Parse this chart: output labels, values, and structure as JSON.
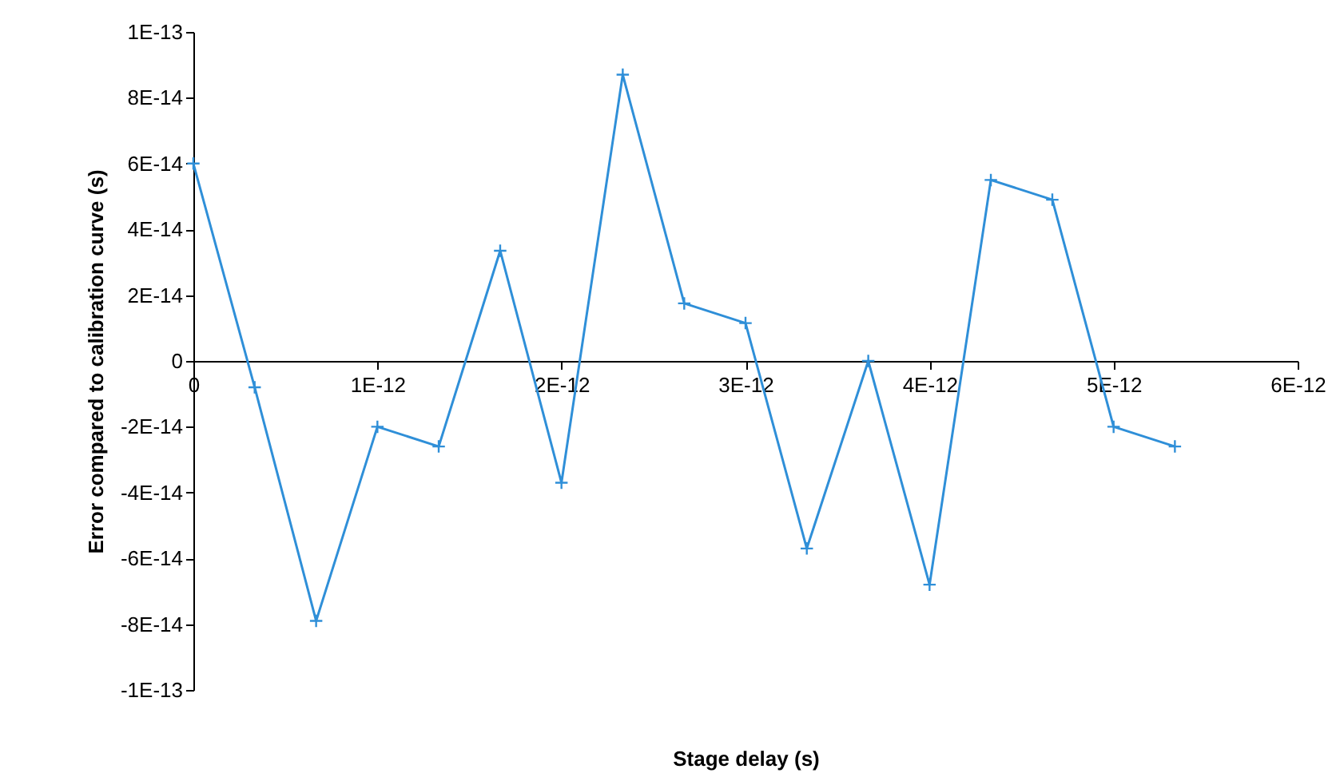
{
  "chart_data": {
    "type": "line",
    "xlabel": "Stage delay (s)",
    "ylabel": "Error compared to calibration curve (s)",
    "x": [
      0,
      3.33e-13,
      6.67e-13,
      1e-12,
      1.333e-12,
      1.667e-12,
      2e-12,
      2.333e-12,
      2.667e-12,
      3e-12,
      3.333e-12,
      3.667e-12,
      4e-12,
      4.333e-12,
      4.667e-12,
      5e-12,
      5.333e-12
    ],
    "series": [
      {
        "color": "#2f8fd8",
        "values": [
          6e-14,
          -8e-15,
          -7.9e-14,
          -2e-14,
          -2.6e-14,
          3.35e-14,
          -3.7e-14,
          8.7e-14,
          1.75e-14,
          1.15e-14,
          -5.7e-14,
          0,
          -6.8e-14,
          5.5e-14,
          4.9e-14,
          -2e-14,
          -2.6e-14
        ]
      }
    ],
    "xlim": [
      0,
      6e-12
    ],
    "xticks": [
      0,
      {
        "value": 1e-12,
        "label": "1E-12"
      },
      {
        "value": 2e-12,
        "label": "2E-12"
      },
      {
        "value": 3e-12,
        "label": "3E-12"
      },
      {
        "value": 4e-12,
        "label": "4E-12"
      },
      {
        "value": 5e-12,
        "label": "5E-12"
      },
      {
        "value": 6e-12,
        "label": "6E-12"
      }
    ],
    "ylim": [
      -1e-13,
      1e-13
    ],
    "yticks": [
      {
        "value": -1e-13,
        "label": "-1E-13"
      },
      {
        "value": -8e-14,
        "label": "-8E-14"
      },
      {
        "value": -6e-14,
        "label": "-6E-14"
      },
      {
        "value": -4e-14,
        "label": "-4E-14"
      },
      {
        "value": -2e-14,
        "label": "-2E-14"
      },
      0,
      {
        "value": 2e-14,
        "label": "2E-14"
      },
      {
        "value": 4e-14,
        "label": "4E-14"
      },
      {
        "value": 6e-14,
        "label": "6E-14"
      },
      {
        "value": 8e-14,
        "label": "8E-14"
      },
      {
        "value": 1e-13,
        "label": "1E-13"
      }
    ],
    "marker": "cross",
    "line_style": "solid",
    "grid": false
  }
}
